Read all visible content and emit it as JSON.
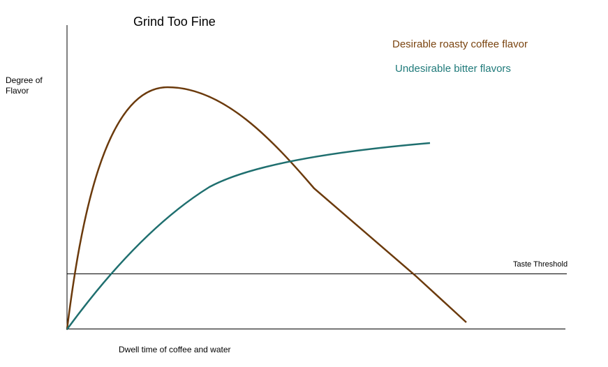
{
  "title": "Grind Too Fine",
  "y_axis_label": "Degree of Flavor",
  "x_axis_label": "Dwell time of coffee and water",
  "threshold_label": "Taste Threshold",
  "legend": [
    {
      "label": "Desirable roasty coffee flavor"
    },
    {
      "label": "Undesirable bitter flavors"
    }
  ]
}
